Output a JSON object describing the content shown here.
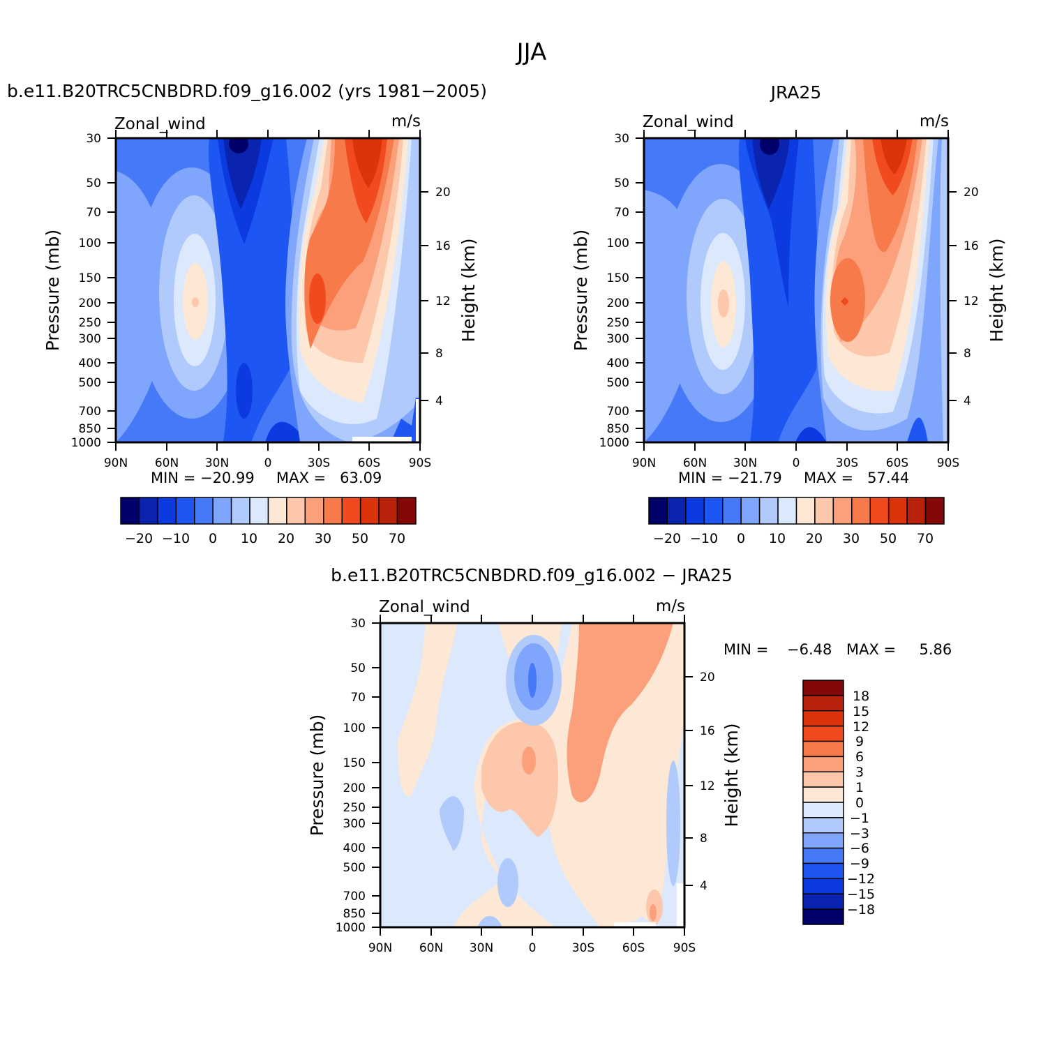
{
  "figure": {
    "title": "JJA"
  },
  "palette_main": [
    "#00006b",
    "#0a24b0",
    "#0b3be0",
    "#1d56f2",
    "#4679f7",
    "#7fa6fc",
    "#b1cafc",
    "#dce9fd",
    "#fde7d5",
    "#fcc7aa",
    "#fba07a",
    "#f77a4b",
    "#f04a1e",
    "#dc340a",
    "#b8210a",
    "#840808"
  ],
  "palette_diff": [
    "#840808",
    "#b8210a",
    "#dc340a",
    "#f04a1e",
    "#f77a4b",
    "#fba07a",
    "#fcc7aa",
    "#fde7d5",
    "#dce9fd",
    "#b1cafc",
    "#7fa6fc",
    "#4679f7",
    "#1d56f2",
    "#0b3be0",
    "#0a24b0",
    "#00006b"
  ],
  "chart_data": [
    {
      "type": "heatmap",
      "panel_title": "b.e11.B20TRC5CNBDRD.f09_g16.002 (yrs 1981−2005)",
      "variable": "Zonal_wind",
      "units": "m/s",
      "ylabel": "Pressure (mb)",
      "ylabel_right": "Height (km)",
      "x_tick_labels": [
        "90N",
        "60N",
        "30N",
        "0",
        "30S",
        "60S",
        "90S"
      ],
      "y_tick_labels": [
        "30",
        "50",
        "70",
        "100",
        "150",
        "200",
        "250",
        "300",
        "400",
        "500",
        "700",
        "850",
        "1000"
      ],
      "y2_tick_labels": [
        "20",
        "16",
        "12",
        "8",
        "4"
      ],
      "ylim": [
        1000,
        30
      ],
      "xlim": [
        90,
        -90
      ],
      "min_text": "MIN = −20.99",
      "max_text": "MAX =   63.09",
      "min": -20.99,
      "max": 63.09,
      "colorbar_labels": [
        "−20",
        "−10",
        "0",
        "10",
        "20",
        "30",
        "50",
        "70"
      ],
      "features": [
        {
          "lat": 42,
          "p": 200,
          "value": 21
        },
        {
          "lat": 18,
          "p": 30,
          "value": -20.99
        },
        {
          "lat": -30,
          "p": 200,
          "value": 46
        },
        {
          "lat": -60,
          "p": 30,
          "value": 63.09
        }
      ]
    },
    {
      "type": "heatmap",
      "panel_title": "JRA25",
      "variable": "Zonal_wind",
      "units": "m/s",
      "ylabel": "Pressure (mb)",
      "ylabel_right": "Height (km)",
      "x_tick_labels": [
        "90N",
        "60N",
        "30N",
        "0",
        "30S",
        "60S",
        "90S"
      ],
      "y_tick_labels": [
        "30",
        "50",
        "70",
        "100",
        "150",
        "200",
        "250",
        "300",
        "400",
        "500",
        "700",
        "850",
        "1000"
      ],
      "y2_tick_labels": [
        "20",
        "16",
        "12",
        "8",
        "4"
      ],
      "ylim": [
        1000,
        30
      ],
      "xlim": [
        90,
        -90
      ],
      "min_text": "MIN = −21.79",
      "max_text": "MAX =   57.44",
      "min": -21.79,
      "max": 57.44,
      "colorbar_labels": [
        "−20",
        "−10",
        "0",
        "10",
        "20",
        "30",
        "50",
        "70"
      ],
      "features": [
        {
          "lat": 42,
          "p": 200,
          "value": 22
        },
        {
          "lat": 16,
          "p": 30,
          "value": -21.79
        },
        {
          "lat": -30,
          "p": 200,
          "value": 41
        },
        {
          "lat": -58,
          "p": 30,
          "value": 57.44
        }
      ]
    },
    {
      "type": "heatmap",
      "panel_title": "b.e11.B20TRC5CNBDRD.f09_g16.002 − JRA25",
      "variable": "Zonal_wind",
      "units": "m/s",
      "ylabel": "Pressure (mb)",
      "ylabel_right": "Height (km)",
      "x_tick_labels": [
        "90N",
        "60N",
        "30N",
        "0",
        "30S",
        "60S",
        "90S"
      ],
      "y_tick_labels": [
        "30",
        "50",
        "70",
        "100",
        "150",
        "200",
        "250",
        "300",
        "400",
        "500",
        "700",
        "850",
        "1000"
      ],
      "y2_tick_labels": [
        "20",
        "16",
        "12",
        "8",
        "4"
      ],
      "ylim": [
        1000,
        30
      ],
      "xlim": [
        90,
        -90
      ],
      "min_text": "MIN =    −6.48",
      "max_text": "MAX =     5.86",
      "min": -6.48,
      "max": 5.86,
      "colorbar_labels": [
        "18",
        "15",
        "12",
        "9",
        "6",
        "3",
        "1",
        "0",
        "−1",
        "−3",
        "−6",
        "−9",
        "−12",
        "−15",
        "−18"
      ],
      "features": [
        {
          "lat": 0,
          "p": 60,
          "value": -6.48
        },
        {
          "lat": 5,
          "p": 150,
          "value": 4
        },
        {
          "lat": -52,
          "p": 45,
          "value": 3
        }
      ]
    }
  ]
}
